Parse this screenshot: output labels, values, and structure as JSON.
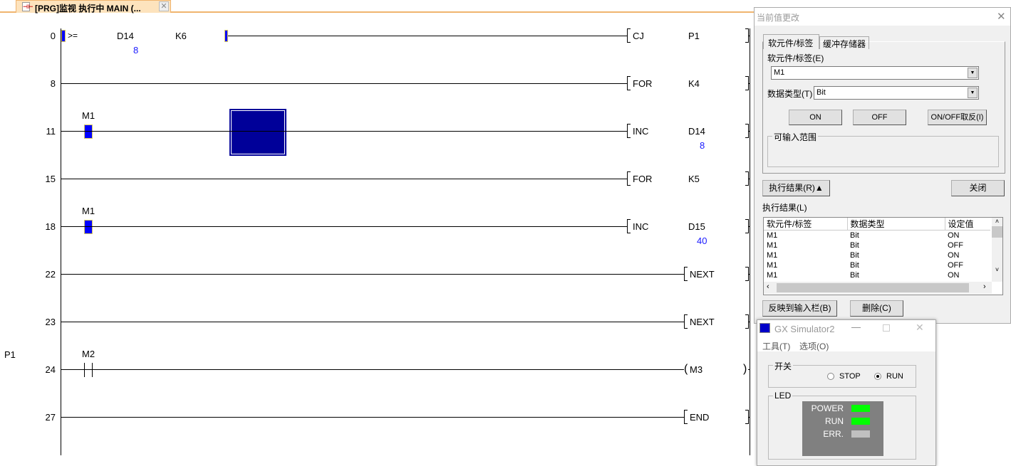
{
  "tab": {
    "title": "[PRG]监视 执行中 MAIN (...",
    "icon": "ladder-program-icon"
  },
  "ladder": {
    "p1_label": "P1",
    "rungs": [
      {
        "step": "0",
        "compare": ">=",
        "op1": "D14",
        "op1_value": "8",
        "op2": "K6",
        "instr": "CJ",
        "arg": "P1",
        "type": "cmp"
      },
      {
        "step": "8",
        "instr": "FOR",
        "arg": "K4",
        "type": "plain"
      },
      {
        "step": "11",
        "contact": "M1",
        "instr": "INC",
        "arg": "D14",
        "arg_value": "8",
        "type": "contact",
        "cursor": true
      },
      {
        "step": "15",
        "instr": "FOR",
        "arg": "K5",
        "type": "plain"
      },
      {
        "step": "18",
        "contact": "M1",
        "instr": "INC",
        "arg": "D15",
        "arg_value": "40",
        "type": "contact"
      },
      {
        "step": "22",
        "instr": "NEXT",
        "type": "short"
      },
      {
        "step": "23",
        "instr": "NEXT",
        "type": "short"
      },
      {
        "step": "24",
        "contact": "M2",
        "coil": "M3",
        "type": "coil"
      },
      {
        "step": "27",
        "instr": "END",
        "type": "short"
      }
    ]
  },
  "modify_dialog": {
    "title": "当前值更改",
    "tabs": [
      "软元件/标签",
      "缓冲存储器"
    ],
    "device_label": "软元件/标签(E)",
    "device_value": "M1",
    "datatype_label": "数据类型(T)",
    "datatype_value": "Bit",
    "on": "ON",
    "off": "OFF",
    "toggle": "ON/OFF取反(I)",
    "range_group": "可输入范围",
    "result_toggle": "执行结果(R)▲",
    "close": "关闭",
    "result_label": "执行结果(L)",
    "columns": [
      "软元件/标签",
      "数据类型",
      "设定值"
    ],
    "rows": [
      [
        "M1",
        "Bit",
        "ON"
      ],
      [
        "M1",
        "Bit",
        "OFF"
      ],
      [
        "M1",
        "Bit",
        "ON"
      ],
      [
        "M1",
        "Bit",
        "OFF"
      ],
      [
        "M1",
        "Bit",
        "ON"
      ]
    ],
    "reflect": "反映到输入栏(B)",
    "delete": "删除(C)"
  },
  "simulator": {
    "title": "GX Simulator2",
    "menu": [
      "工具(T)",
      "选项(O)"
    ],
    "switch_group": "开关",
    "stop": "STOP",
    "run": "RUN",
    "selected": "RUN",
    "led_group": "LED",
    "leds": [
      {
        "name": "POWER",
        "color": "#00ff00"
      },
      {
        "name": "RUN",
        "color": "#00ff00"
      },
      {
        "name": "ERR.",
        "color": "#c0c0c0"
      }
    ]
  }
}
